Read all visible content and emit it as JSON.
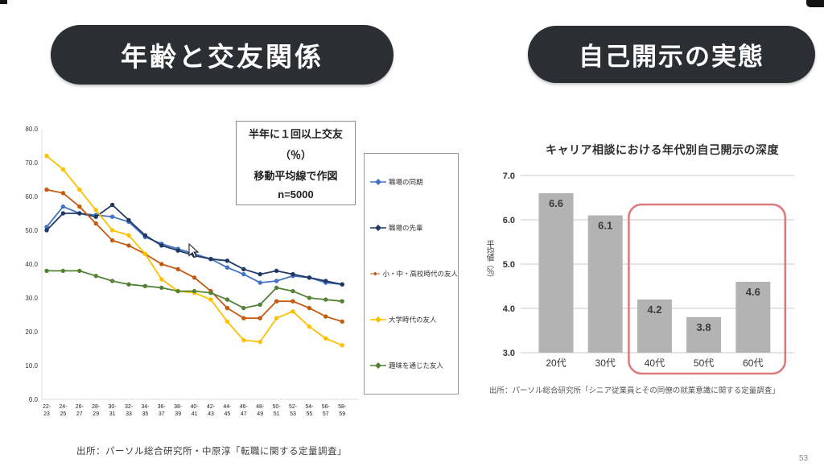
{
  "page_number": "53",
  "sections": {
    "left": {
      "title": "年齢と交友関係",
      "source": "出所：パーソル総合研究所・中原淳「転職に関する定量調査」"
    },
    "right": {
      "title": "自己開示の実態",
      "source": "出所：パーソル総合研究所「シニア従業員とその同僚の就業意識に関する定量調査」"
    }
  },
  "colors": {
    "pill_bg": "#2b2e33",
    "pill_text": "#ffffff",
    "bar_gray": "#b3b3b3",
    "highlight_red": "#dc7a7a"
  },
  "chart_data": [
    {
      "type": "line",
      "title": "年齢と交友関係",
      "note_lines": [
        "半年に１回以上交友",
        "（％）",
        "移動平均線で作図",
        "n=5000"
      ],
      "categories": [
        "22-23",
        "24-25",
        "26-27",
        "28-29",
        "30-31",
        "32-33",
        "34-35",
        "36-37",
        "38-39",
        "40-41",
        "42-43",
        "44-45",
        "46-47",
        "48-49",
        "50-51",
        "52-53",
        "54-55",
        "56-57",
        "58-59"
      ],
      "series": [
        {
          "name": "職場の同期",
          "color": "#4472c4",
          "values": [
            51,
            57,
            55,
            54.5,
            54,
            52.5,
            48,
            46,
            44.5,
            43,
            41.5,
            39,
            37,
            34.5,
            35,
            36.5,
            36,
            34.5,
            34
          ]
        },
        {
          "name": "職場の先輩",
          "color": "#1f3864",
          "values": [
            50,
            55,
            55,
            54,
            57.5,
            53,
            48.5,
            45.5,
            44,
            42.5,
            41.5,
            41,
            38.5,
            37,
            38,
            37,
            36,
            35,
            34
          ]
        },
        {
          "name": "小・中・高校時代の友人",
          "color": "#c55a11",
          "values": [
            62,
            61,
            57,
            52,
            47,
            45.5,
            43,
            40,
            38.5,
            36,
            32,
            27,
            24,
            24,
            29,
            29,
            27,
            24.5,
            23
          ]
        },
        {
          "name": "大学時代の友人",
          "color": "#ffc000",
          "values": [
            72,
            68,
            62,
            56,
            50,
            48.5,
            43,
            35.5,
            32,
            31.5,
            29.5,
            23,
            17.5,
            17,
            24,
            26,
            21.5,
            18,
            16
          ]
        },
        {
          "name": "趣味を通じた友人",
          "color": "#548235",
          "values": [
            38,
            38,
            38,
            36.5,
            35,
            34,
            33.5,
            33,
            32,
            32,
            31.5,
            29.5,
            27,
            28,
            33,
            32,
            30,
            29.5,
            29
          ]
        }
      ],
      "xlabel": "",
      "ylabel": "",
      "ylim": [
        0,
        80
      ],
      "yticks": [
        0,
        10,
        20,
        30,
        40,
        50,
        60,
        70,
        80
      ],
      "grid": false,
      "legend_position": "right"
    },
    {
      "type": "bar",
      "title": "キャリア相談における年代別自己開示の深度",
      "categories": [
        "20代",
        "30代",
        "40代",
        "50代",
        "60代"
      ],
      "values": [
        6.6,
        6.1,
        4.2,
        3.8,
        4.6
      ],
      "xlabel": "",
      "ylabel": "平均値（％）",
      "ylim": [
        3.0,
        7.0
      ],
      "yticks": [
        3.0,
        4.0,
        5.0,
        6.0,
        7.0
      ],
      "bar_color": "#b3b3b3",
      "value_label_color": "#3a3a3a",
      "highlight_box": {
        "categories": [
          "40代",
          "50代",
          "60代"
        ],
        "color": "#dc7a7a"
      },
      "grid": true,
      "legend_position": "none"
    }
  ]
}
